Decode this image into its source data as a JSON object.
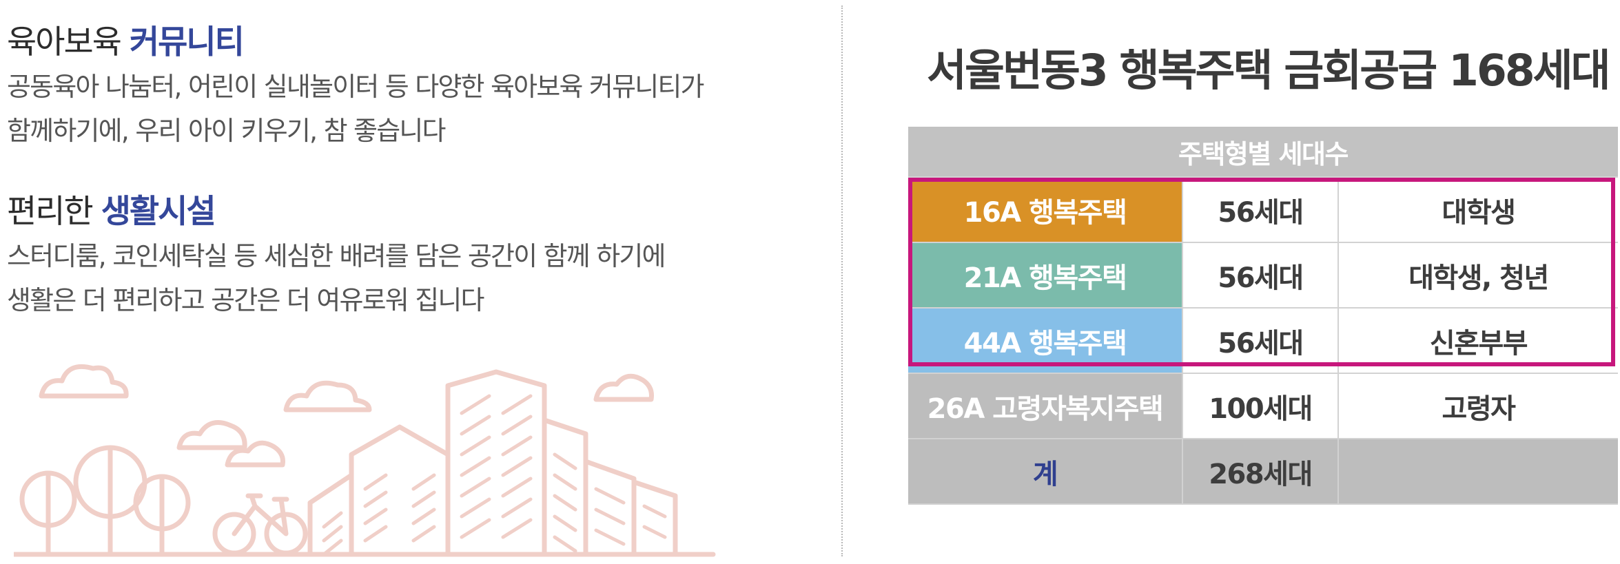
{
  "left": {
    "section1": {
      "title_prefix": "육아보육",
      "title_accent": "커뮤니티",
      "desc_line1": "공동육아 나눔터, 어린이 실내놀이터 등 다양한 육아보육 커뮤니티가",
      "desc_line2": "함께하기에, 우리 아이 키우기, 참 좋습니다"
    },
    "section2": {
      "title_prefix": "편리한",
      "title_accent": "생활시설",
      "desc_line1": "스터디룸, 코인세탁실 등 세심한 배려를 담은 공간이 함께 하기에",
      "desc_line2": "생활은 더 편리하고 공간은 더 여유로워 집니다"
    },
    "illustration_icon": "city-park-illustration",
    "illustration_color": "#f0cfc8"
  },
  "right": {
    "headline": "서울번동3 행복주택 금회공급 168세대",
    "table": {
      "header": "주택형별 세대수",
      "rows": [
        {
          "type": "16A 행복주택",
          "count": "56세대",
          "target": "대학생",
          "color": "#d99126"
        },
        {
          "type": "21A 행복주택",
          "count": "56세대",
          "target": "대학생, 청년",
          "color": "#7bbbab"
        },
        {
          "type": "44A 행복주택",
          "count": "56세대",
          "target": "신혼부부",
          "color": "#86bfe8"
        },
        {
          "type": "26A 고령자복지주택",
          "count": "100세대",
          "target": "고령자",
          "color": "#bdbdbd"
        }
      ],
      "total": {
        "label": "계",
        "count": "268세대",
        "target": ""
      }
    },
    "highlight_color": "#c7177c"
  }
}
